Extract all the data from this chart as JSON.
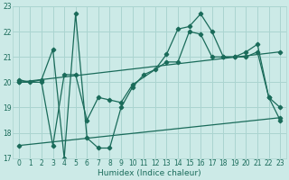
{
  "title": "",
  "xlabel": "Humidex (Indice chaleur)",
  "ylabel": "",
  "background_color": "#cceae7",
  "grid_color": "#aad4d0",
  "line_color": "#1a6b5a",
  "xlim": [
    -0.5,
    23.5
  ],
  "ylim": [
    17,
    23
  ],
  "yticks": [
    17,
    18,
    19,
    20,
    21,
    22,
    23
  ],
  "xticks": [
    0,
    1,
    2,
    3,
    4,
    5,
    6,
    7,
    8,
    9,
    10,
    11,
    12,
    13,
    14,
    15,
    16,
    17,
    18,
    19,
    20,
    21,
    22,
    23
  ],
  "curve1_x": [
    0,
    1,
    2,
    3,
    4,
    5,
    6,
    7,
    8,
    9,
    10,
    11,
    12,
    13,
    14,
    15,
    16,
    17,
    18,
    19,
    20,
    21,
    22,
    23
  ],
  "curve1_y": [
    20.1,
    20.0,
    20.1,
    21.3,
    17.0,
    22.7,
    17.8,
    17.4,
    17.4,
    19.0,
    19.8,
    20.3,
    20.5,
    21.1,
    22.1,
    22.2,
    22.7,
    22.0,
    21.0,
    21.0,
    21.2,
    21.5,
    19.4,
    19.0
  ],
  "curve2_x": [
    0,
    2,
    3,
    4,
    5,
    6,
    7,
    8,
    9,
    10,
    13,
    14,
    15,
    16,
    17,
    18,
    19,
    20,
    21,
    22,
    23
  ],
  "curve2_y": [
    20.0,
    20.0,
    17.5,
    20.3,
    20.3,
    18.5,
    19.4,
    19.3,
    19.2,
    19.9,
    20.8,
    20.8,
    22.0,
    21.9,
    21.0,
    21.0,
    21.0,
    21.0,
    21.2,
    19.4,
    18.5
  ],
  "line1_x": [
    0,
    23
  ],
  "line1_y": [
    20.0,
    21.2
  ],
  "line2_x": [
    0,
    23
  ],
  "line2_y": [
    17.5,
    18.6
  ]
}
